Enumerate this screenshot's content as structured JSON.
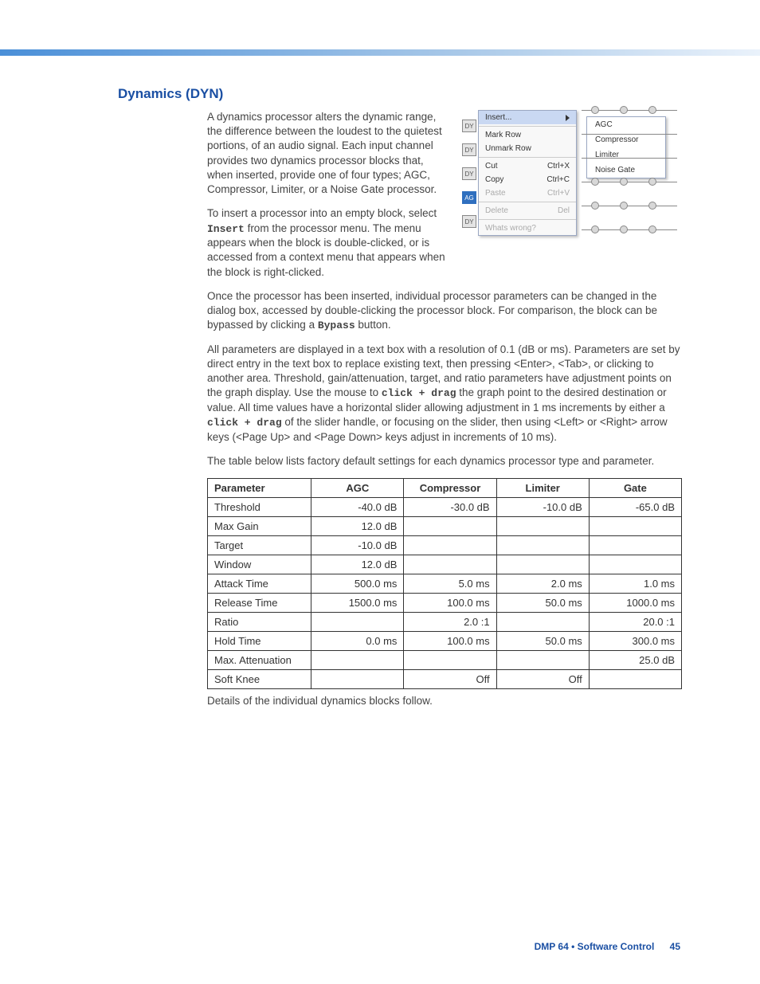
{
  "section_title": "Dynamics (DYN)",
  "para1": "A dynamics processor alters the dynamic range, the difference between the loudest to the quietest portions, of an audio signal. Each input channel provides two dynamics processor blocks that, when inserted, provide one of four types; AGC, Compressor, Limiter, or a Noise Gate processor.",
  "para2a": "To insert a processor into an empty block, select ",
  "para2_mono": "Insert",
  "para2b": " from the processor menu. The menu appears when the block is double-clicked, or is accessed from a context menu that appears when the block is right-clicked.",
  "para3a": "Once the processor has been inserted, individual processor parameters can be changed in the dialog box, accessed by double-clicking the processor block. For comparison, the block can be bypassed by clicking a ",
  "para3_mono": "Bypass",
  "para3b": " button.",
  "para4a": "All parameters are displayed in a text box with a resolution of 0.1 (dB or ms). Parameters are set by direct entry in the text box to replace existing text, then pressing <Enter>, <Tab>, or clicking to another area. Threshold, gain/attenuation, target, and ratio parameters have adjustment points on the graph display. Use the mouse to ",
  "para4_mono1": "click + drag",
  "para4b": " the graph point to the desired destination or value. All time values have a horizontal slider allowing adjustment in 1 ms increments by either a ",
  "para4_mono2": "click + drag",
  "para4c": " of the slider handle, or focusing on the slider, then using <Left> or <Right> arrow keys (<Page Up> and <Page Down> keys adjust in increments of 10 ms).",
  "para5": "The table below lists factory default settings for each dynamics processor type and parameter.",
  "para6": "Details of the individual dynamics blocks follow.",
  "context_menu": {
    "items": [
      {
        "label": "Insert...",
        "shortcut": "",
        "sel": true,
        "arrow": true
      },
      {
        "label": "Mark Row",
        "shortcut": ""
      },
      {
        "label": "Unmark Row",
        "shortcut": ""
      },
      {
        "label": "Cut",
        "shortcut": "Ctrl+X"
      },
      {
        "label": "Copy",
        "shortcut": "Ctrl+C"
      },
      {
        "label": "Paste",
        "shortcut": "Ctrl+V",
        "dis": true
      },
      {
        "label": "Delete",
        "shortcut": "Del",
        "dis": true
      },
      {
        "label": "Whats wrong?",
        "shortcut": "",
        "dis": true
      }
    ],
    "submenu": [
      "AGC",
      "Compressor",
      "Limiter",
      "Noise Gate"
    ],
    "blocks": [
      "DY",
      "DY",
      "DY",
      "AG",
      "DY"
    ]
  },
  "table": {
    "columns": [
      "Parameter",
      "AGC",
      "Compressor",
      "Limiter",
      "Gate"
    ],
    "rows": [
      [
        "Threshold",
        "-40.0 dB",
        "-30.0 dB",
        "-10.0 dB",
        "-65.0 dB"
      ],
      [
        "Max Gain",
        "12.0 dB",
        "",
        "",
        ""
      ],
      [
        "Target",
        "-10.0 dB",
        "",
        "",
        ""
      ],
      [
        "Window",
        "12.0 dB",
        "",
        "",
        ""
      ],
      [
        "Attack Time",
        "500.0 ms",
        "5.0 ms",
        "2.0 ms",
        "1.0 ms"
      ],
      [
        "Release Time",
        "1500.0 ms",
        "100.0 ms",
        "50.0 ms",
        "1000.0 ms"
      ],
      [
        "Ratio",
        "",
        "2.0 :1",
        "",
        "20.0 :1"
      ],
      [
        "Hold Time",
        "0.0 ms",
        "100.0 ms",
        "50.0 ms",
        "300.0 ms"
      ],
      [
        "Max. Attenuation",
        "",
        "",
        "",
        "25.0 dB"
      ],
      [
        "Soft Knee",
        "",
        "Off",
        "Off",
        ""
      ]
    ]
  },
  "footer": {
    "doc": "DMP 64 • Software Control",
    "page": "45"
  }
}
